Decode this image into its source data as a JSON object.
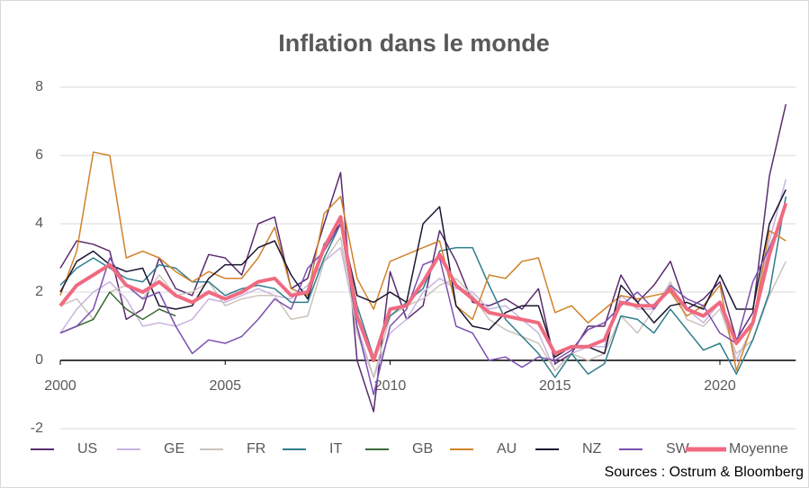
{
  "chart_data": {
    "type": "line",
    "title": "Inflation dans le monde",
    "source": "Sources : Ostrum & Bloomberg",
    "x": [
      2000,
      2000.5,
      2001,
      2001.5,
      2002,
      2002.5,
      2003,
      2003.5,
      2004,
      2004.5,
      2005,
      2005.5,
      2006,
      2006.5,
      2007,
      2007.5,
      2008,
      2008.5,
      2009,
      2009.5,
      2010,
      2010.5,
      2011,
      2011.5,
      2012,
      2012.5,
      2013,
      2013.5,
      2014,
      2014.5,
      2015,
      2015.5,
      2016,
      2016.5,
      2017,
      2017.5,
      2018,
      2018.5,
      2019,
      2019.5,
      2020,
      2020.5,
      2021,
      2021.5,
      2022
    ],
    "xlim": [
      2000,
      2022.3
    ],
    "xticks": [
      2000,
      2005,
      2010,
      2015,
      2020
    ],
    "ylim": [
      -2,
      8
    ],
    "yticks": [
      -2,
      0,
      2,
      4,
      6,
      8
    ],
    "grid": true,
    "legend": "bottom",
    "series": [
      {
        "name": "US",
        "color": "#5b2c6f",
        "values": [
          2.7,
          3.5,
          3.4,
          3.2,
          1.2,
          1.5,
          3.0,
          2.1,
          1.9,
          3.1,
          3.0,
          2.5,
          4.0,
          4.2,
          2.1,
          2.4,
          4.0,
          5.5,
          0.0,
          -1.5,
          2.6,
          1.2,
          1.6,
          3.8,
          2.9,
          1.7,
          1.6,
          1.8,
          1.5,
          2.1,
          -0.1,
          0.2,
          1.0,
          1.0,
          2.5,
          1.7,
          2.2,
          2.9,
          1.5,
          1.8,
          2.3,
          0.6,
          1.4,
          5.4,
          7.5
        ]
      },
      {
        "name": "GE",
        "color": "#c9b3e0",
        "values": [
          0.8,
          1.5,
          2.0,
          2.3,
          1.8,
          1.0,
          1.1,
          1.0,
          1.2,
          1.8,
          1.7,
          1.9,
          2.1,
          1.9,
          1.8,
          2.2,
          2.9,
          3.3,
          1.0,
          -0.5,
          0.8,
          1.2,
          2.0,
          2.4,
          2.1,
          2.0,
          1.5,
          1.6,
          1.2,
          0.8,
          -0.3,
          0.2,
          0.4,
          0.4,
          1.9,
          1.5,
          1.5,
          2.1,
          1.5,
          1.1,
          1.7,
          0.0,
          1.0,
          3.5,
          5.3
        ]
      },
      {
        "name": "FR",
        "color": "#cbc3bb",
        "values": [
          1.6,
          1.8,
          1.2,
          2.0,
          2.2,
          1.8,
          2.5,
          1.9,
          2.0,
          2.3,
          1.6,
          1.8,
          1.9,
          1.9,
          1.2,
          1.3,
          2.9,
          3.6,
          0.8,
          -0.5,
          1.3,
          1.6,
          1.8,
          2.2,
          2.4,
          1.9,
          1.2,
          0.9,
          0.7,
          0.5,
          -0.3,
          0.2,
          0.0,
          0.2,
          1.3,
          0.8,
          1.5,
          2.3,
          1.2,
          1.0,
          1.5,
          0.2,
          0.6,
          1.9,
          2.9
        ]
      },
      {
        "name": "IT",
        "color": "#2e7d8c",
        "values": [
          2.2,
          2.7,
          3.0,
          2.7,
          2.4,
          2.3,
          2.8,
          2.7,
          2.3,
          2.3,
          1.9,
          2.1,
          2.2,
          2.1,
          1.7,
          1.7,
          3.0,
          4.0,
          1.6,
          0.1,
          1.3,
          1.7,
          2.1,
          3.2,
          3.3,
          3.3,
          2.2,
          1.2,
          0.7,
          0.2,
          -0.5,
          0.2,
          -0.4,
          -0.1,
          1.3,
          1.2,
          0.8,
          1.5,
          0.9,
          0.3,
          0.5,
          -0.4,
          0.6,
          2.0,
          4.8
        ]
      },
      {
        "name": "GB",
        "color": "#3a6b35",
        "values": [
          0.8,
          1.0,
          1.2,
          2.0,
          1.5,
          1.2,
          1.5,
          1.3,
          null,
          null,
          null,
          null,
          null,
          null,
          null,
          null,
          null,
          null,
          null,
          null,
          null,
          null,
          null,
          null,
          null,
          null,
          null,
          null,
          null,
          null,
          null,
          null,
          null,
          null,
          null,
          null,
          null,
          null,
          null,
          null,
          null,
          null,
          null,
          null,
          null
        ]
      },
      {
        "name": "AU",
        "color": "#d0822a",
        "values": [
          1.9,
          3.2,
          6.1,
          6.0,
          3.0,
          3.2,
          3.0,
          2.6,
          2.3,
          2.6,
          2.4,
          2.4,
          3.0,
          3.9,
          2.1,
          1.9,
          4.3,
          4.8,
          2.4,
          1.5,
          2.9,
          3.1,
          3.3,
          3.5,
          1.6,
          1.2,
          2.5,
          2.4,
          2.9,
          3.0,
          1.4,
          1.6,
          1.1,
          1.5,
          1.9,
          1.8,
          1.9,
          2.0,
          1.3,
          1.6,
          2.2,
          -0.3,
          1.1,
          3.8,
          3.5
        ]
      },
      {
        "name": "NZ",
        "color": "#1a1530",
        "values": [
          2.0,
          2.9,
          3.2,
          2.8,
          2.6,
          2.7,
          1.6,
          1.5,
          1.6,
          2.4,
          2.8,
          2.8,
          3.3,
          3.5,
          2.5,
          1.8,
          3.4,
          4.0,
          1.9,
          1.7,
          2.0,
          1.7,
          4.0,
          4.5,
          1.6,
          1.0,
          0.9,
          1.4,
          1.6,
          1.6,
          0.1,
          0.4,
          0.4,
          0.2,
          2.2,
          1.7,
          1.1,
          1.6,
          1.7,
          1.5,
          2.5,
          1.5,
          1.5,
          4.0,
          5.0
        ]
      },
      {
        "name": "SW",
        "color": "#7b4fb0",
        "values": [
          0.8,
          1.0,
          1.5,
          3.0,
          2.2,
          1.8,
          2.0,
          1.0,
          0.2,
          0.6,
          0.5,
          0.7,
          1.2,
          1.8,
          1.5,
          2.7,
          3.2,
          4.0,
          1.0,
          -1.0,
          1.0,
          1.5,
          2.8,
          3.0,
          1.0,
          0.8,
          0.0,
          0.1,
          -0.2,
          0.1,
          0.0,
          0.3,
          0.9,
          1.1,
          1.6,
          2.0,
          1.5,
          2.2,
          1.8,
          1.6,
          0.8,
          0.5,
          2.3,
          3.3,
          4.5
        ]
      },
      {
        "name": "Moyenne",
        "color": "#f06a80",
        "values": [
          1.6,
          2.2,
          2.5,
          2.8,
          2.2,
          2.0,
          2.3,
          1.9,
          1.7,
          2.0,
          1.8,
          2.0,
          2.3,
          2.4,
          1.9,
          2.0,
          3.3,
          4.2,
          1.3,
          0.0,
          1.5,
          1.6,
          2.3,
          3.1,
          2.2,
          1.8,
          1.4,
          1.3,
          1.2,
          1.1,
          0.2,
          0.4,
          0.4,
          0.6,
          1.7,
          1.6,
          1.6,
          2.1,
          1.5,
          1.3,
          1.7,
          0.5,
          1.1,
          3.1,
          4.6
        ]
      }
    ]
  }
}
